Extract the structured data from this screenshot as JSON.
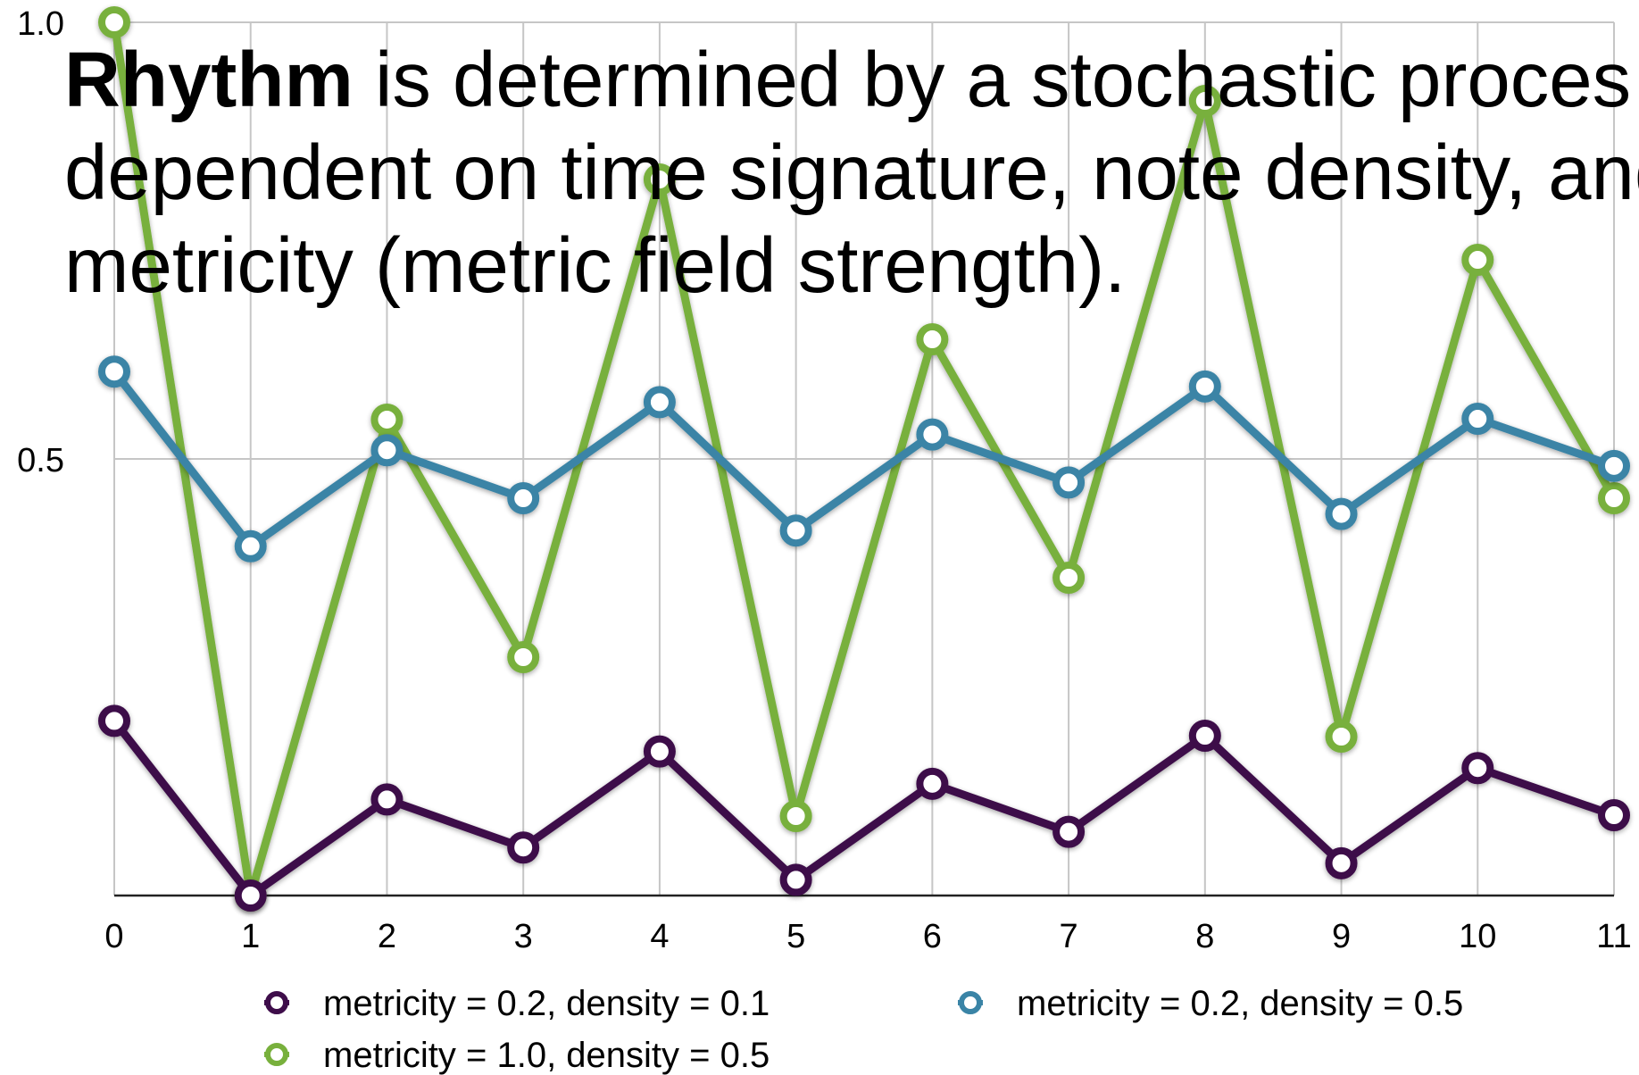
{
  "headline": {
    "bold": "Rhythm",
    "line1_rest": " is determined by a stochastic proces",
    "line2": "dependent on time signature, note density, and",
    "line3": "metricity (metric field strength)."
  },
  "chart_data": {
    "type": "line",
    "title": "",
    "xlabel": "",
    "ylabel": "",
    "x": [
      0,
      1,
      2,
      3,
      4,
      5,
      6,
      7,
      8,
      9,
      10,
      11
    ],
    "x_tick_labels": [
      "0",
      "1",
      "2",
      "3",
      "4",
      "5",
      "6",
      "7",
      "8",
      "9",
      "10",
      "11"
    ],
    "y_tick_labels": [
      "1.0",
      "0.5"
    ],
    "y_ticks": [
      1.0,
      0.5
    ],
    "ylim": [
      0,
      1.0
    ],
    "xlim": [
      0,
      11
    ],
    "grid": true,
    "legend_position": "bottom",
    "series": [
      {
        "name": "metricity = 0.2, density = 0.1",
        "color": "#3e0d4a",
        "values": [
          0.2,
          0.0,
          0.11,
          0.055,
          0.165,
          0.018,
          0.128,
          0.073,
          0.183,
          0.037,
          0.146,
          0.092
        ]
      },
      {
        "name": "metricity = 1.0, density = 0.5",
        "color": "#78b03c",
        "values": [
          1.0,
          0.0,
          0.545,
          0.273,
          0.82,
          0.091,
          0.637,
          0.364,
          0.91,
          0.182,
          0.728,
          0.455
        ]
      },
      {
        "name": "metricity = 0.2, density = 0.5",
        "color": "#3a84a6",
        "values": [
          0.6,
          0.4,
          0.51,
          0.455,
          0.565,
          0.418,
          0.528,
          0.473,
          0.583,
          0.437,
          0.546,
          0.492
        ]
      }
    ],
    "legend_order": [
      0,
      2,
      1
    ]
  }
}
